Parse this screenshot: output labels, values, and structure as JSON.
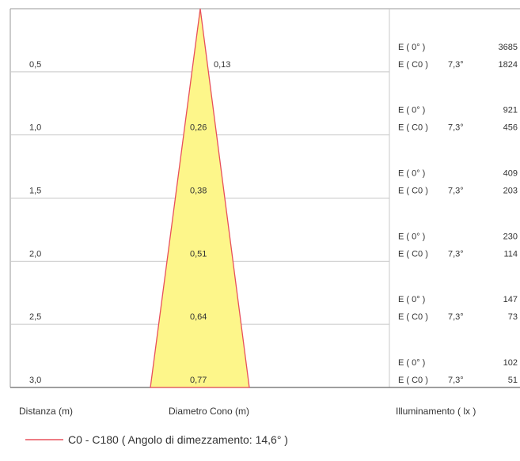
{
  "distances": [
    "0,5",
    "1,0",
    "1,5",
    "2,0",
    "2,5",
    "3,0"
  ],
  "diameters": [
    "0,13",
    "0,26",
    "0,38",
    "0,51",
    "0,64",
    "0,77"
  ],
  "illuminance": [
    {
      "e0_label": "E ( 0° )",
      "e0_value": "3685",
      "ec0_label": "E ( C0 )",
      "angle": "7,3°",
      "ec0_value": "1824"
    },
    {
      "e0_label": "E ( 0° )",
      "e0_value": "921",
      "ec0_label": "E ( C0 )",
      "angle": "7,3°",
      "ec0_value": "456"
    },
    {
      "e0_label": "E ( 0° )",
      "e0_value": "409",
      "ec0_label": "E ( C0 )",
      "angle": "7,3°",
      "ec0_value": "203"
    },
    {
      "e0_label": "E ( 0° )",
      "e0_value": "230",
      "ec0_label": "E ( C0 )",
      "angle": "7,3°",
      "ec0_value": "114"
    },
    {
      "e0_label": "E ( 0° )",
      "e0_value": "147",
      "ec0_label": "E ( C0 )",
      "angle": "7,3°",
      "ec0_value": "73"
    },
    {
      "e0_label": "E ( 0° )",
      "e0_value": "102",
      "ec0_label": "E ( C0 )",
      "angle": "7,3°",
      "ec0_value": "51"
    }
  ],
  "footer": {
    "distance_label": "Distanza (m)",
    "diameter_label": "Diametro Cono (m)",
    "illuminance_label": "Illuminamento ( lx )"
  },
  "legend": {
    "text": "C0 - C180  ( Angolo di dimezzamento: 14,6° )",
    "color": "#e8505b"
  },
  "colors": {
    "cone_fill": "#fdf68a",
    "cone_stroke": "#e8505b",
    "grid": "#c8c8c8",
    "frame": "#9a9a9a"
  }
}
